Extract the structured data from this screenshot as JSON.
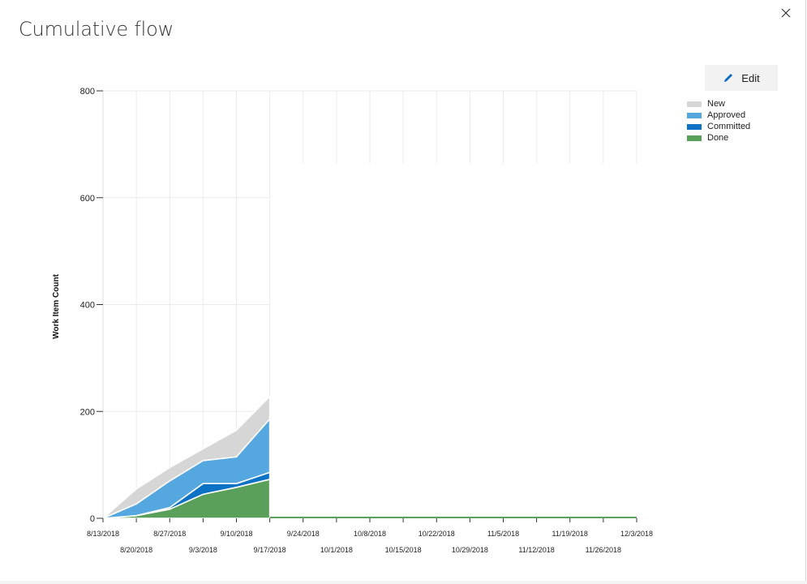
{
  "dialog": {
    "title": "Cumulative flow",
    "close_icon": "close-icon",
    "edit_label": "Edit",
    "edit_icon": "pencil-icon"
  },
  "chart_data": {
    "type": "area",
    "stacked": true,
    "title": "",
    "xlabel": "",
    "ylabel": "Work Item Count",
    "ylim": [
      0,
      800
    ],
    "yticks": [
      0,
      200,
      400,
      600,
      800
    ],
    "x": [
      "8/13/2018",
      "8/20/2018",
      "8/27/2018",
      "9/3/2018",
      "9/10/2018",
      "9/17/2018"
    ],
    "xlim": [
      "8/13/2018",
      "12/3/2018"
    ],
    "xticks_upper": [
      "8/13/2018",
      "8/27/2018",
      "9/10/2018",
      "9/24/2018",
      "10/8/2018",
      "10/22/2018",
      "11/5/2018",
      "11/19/2018",
      "12/3/2018"
    ],
    "xticks_lower": [
      "8/20/2018",
      "9/3/2018",
      "9/17/2018",
      "10/1/2018",
      "10/15/2018",
      "10/29/2018",
      "11/12/2018",
      "11/26/2018"
    ],
    "series": [
      {
        "name": "Done",
        "color": "#5aa05a",
        "values": [
          0,
          5,
          17,
          45,
          58,
          73
        ]
      },
      {
        "name": "Committed",
        "color": "#0b72c6",
        "values": [
          0,
          0,
          3,
          20,
          7,
          13
        ]
      },
      {
        "name": "Approved",
        "color": "#55a7df",
        "values": [
          0,
          22,
          50,
          43,
          50,
          100
        ]
      },
      {
        "name": "New",
        "color": "#d6d6d6",
        "values": [
          0,
          28,
          25,
          22,
          50,
          42
        ]
      }
    ],
    "future_baseline": {
      "from": "9/17/2018",
      "to": "12/3/2018",
      "value": 3,
      "color": "#5aa05a"
    },
    "grid": true,
    "legend_position": "top-right"
  }
}
